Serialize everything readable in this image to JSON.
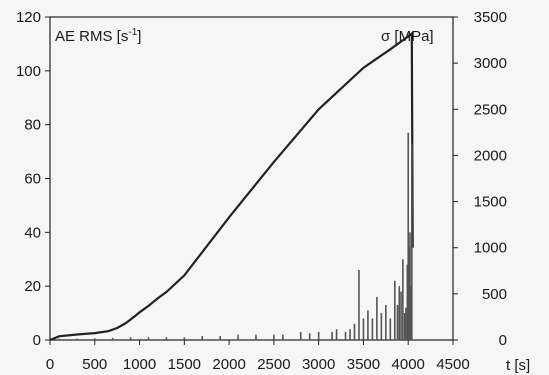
{
  "chart_data": {
    "type": "line",
    "xlabel": "t [s]",
    "x_axis": {
      "min": 0,
      "max": 4500,
      "ticks": [
        0,
        500,
        1000,
        1500,
        2000,
        2500,
        3000,
        3500,
        4000,
        4500
      ]
    },
    "y_left": {
      "label_main": "AE RMS [s",
      "label_sup": "-1",
      "label_end": "]",
      "min": 0,
      "max": 120,
      "ticks": [
        0,
        20,
        40,
        60,
        80,
        100,
        120
      ]
    },
    "y_right": {
      "label": "σ [MPa]",
      "min": 0,
      "max": 3500,
      "ticks": [
        0,
        500,
        1000,
        1500,
        2000,
        2500,
        3000,
        3500
      ]
    },
    "series": [
      {
        "axis": "right",
        "style": "line",
        "color": "#222222",
        "x": [
          0,
          100,
          300,
          500,
          650,
          750,
          850,
          950,
          1000,
          1100,
          1200,
          1300,
          1500,
          2000,
          2500,
          3000,
          3500,
          3800,
          4000,
          4040,
          4050
        ],
        "y": [
          0,
          40,
          60,
          75,
          95,
          130,
          185,
          260,
          300,
          370,
          450,
          520,
          700,
          1330,
          1930,
          2500,
          2950,
          3150,
          3290,
          3320,
          1000
        ]
      },
      {
        "axis": "left",
        "style": "spikes",
        "color": "#555555",
        "x": [
          100,
          300,
          500,
          700,
          900,
          1100,
          1300,
          1500,
          1700,
          1900,
          2100,
          2300,
          2500,
          2600,
          2800,
          2900,
          3000,
          3150,
          3200,
          3300,
          3350,
          3400,
          3450,
          3500,
          3550,
          3600,
          3650,
          3700,
          3750,
          3800,
          3850,
          3880,
          3900,
          3920,
          3940,
          3960,
          3975,
          3990,
          4000,
          4010,
          4020,
          4030,
          4040
        ],
        "y": [
          0.5,
          0.5,
          0.6,
          0.8,
          1,
          1,
          1,
          1,
          1.5,
          1.5,
          2,
          2,
          2,
          2,
          3,
          2.5,
          3,
          3,
          4,
          3,
          4,
          6,
          26,
          8,
          11,
          8,
          16,
          10,
          13,
          8,
          22,
          13,
          20,
          18,
          30,
          10,
          12,
          28,
          77,
          35,
          40,
          20,
          73
        ]
      }
    ],
    "grid": false
  }
}
